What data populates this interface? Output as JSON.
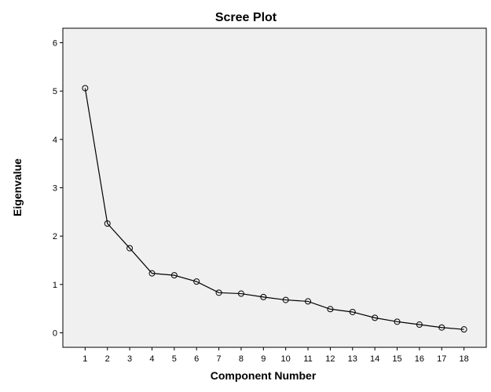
{
  "chart_data": {
    "type": "line",
    "title": "Scree Plot",
    "xlabel": "Component Number",
    "ylabel": "Eigenvalue",
    "x": [
      1,
      2,
      3,
      4,
      5,
      6,
      7,
      8,
      9,
      10,
      11,
      12,
      13,
      14,
      15,
      16,
      17,
      18
    ],
    "values": [
      5.06,
      2.26,
      1.75,
      1.23,
      1.19,
      1.06,
      0.83,
      0.81,
      0.74,
      0.68,
      0.65,
      0.49,
      0.43,
      0.31,
      0.23,
      0.17,
      0.11,
      0.07
    ],
    "ylim": [
      -0.3,
      6.3
    ],
    "xlim": [
      0,
      19
    ],
    "yticks": [
      0,
      1,
      2,
      3,
      4,
      5,
      6
    ],
    "xticks": [
      1,
      2,
      3,
      4,
      5,
      6,
      7,
      8,
      9,
      10,
      11,
      12,
      13,
      14,
      15,
      16,
      17,
      18
    ],
    "marker": "open-circle",
    "grid": false,
    "legend": "none"
  },
  "colors": {
    "plot_background": "#f0f0f0",
    "series": "#000000"
  }
}
